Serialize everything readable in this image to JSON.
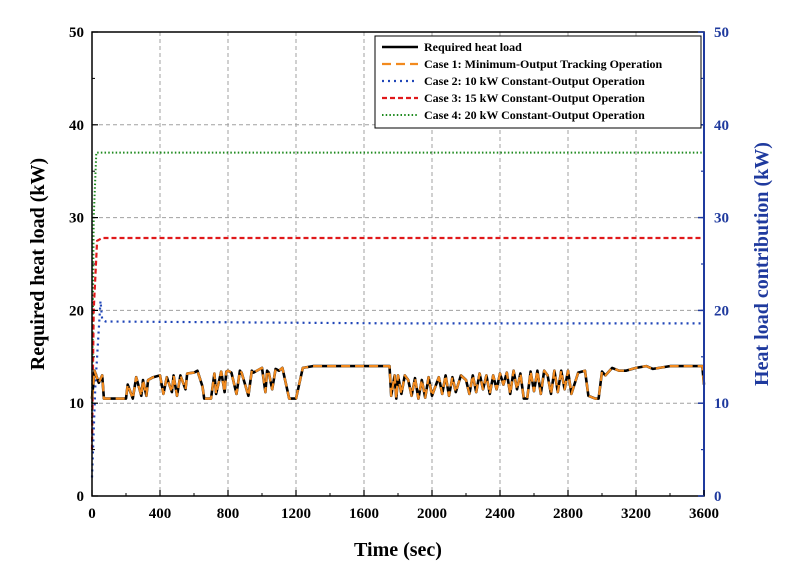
{
  "chart_data": {
    "type": "line",
    "title": "",
    "xlabel": "Time (sec)",
    "ylabel": "Required heat load (kW)",
    "y2label": "Heat load contribution (kW)",
    "xlim": [
      0,
      3600
    ],
    "ylim": [
      0,
      50
    ],
    "y2lim": [
      0,
      50
    ],
    "xticks": [
      0,
      400,
      800,
      1200,
      1600,
      2000,
      2400,
      2800,
      3200,
      3600
    ],
    "yticks": [
      0,
      10,
      20,
      30,
      40,
      50
    ],
    "y2ticks": [
      0,
      10,
      20,
      30,
      40,
      50
    ],
    "grid": true,
    "legend_position": "top-right",
    "colors": {
      "required": "#000000",
      "case1": "#f28a1e",
      "case2": "#2046b8",
      "case3": "#e0191b",
      "case4": "#1e8a1e",
      "right_axis": "#1f3a9e"
    },
    "series": [
      {
        "name": "Required heat load",
        "axis": "left",
        "x": [
          0,
          15,
          40,
          60,
          70,
          100,
          200,
          210,
          240,
          260,
          290,
          300,
          320,
          330,
          360,
          400,
          420,
          440,
          470,
          480,
          500,
          520,
          550,
          560,
          600,
          620,
          650,
          660,
          700,
          720,
          730,
          760,
          780,
          790,
          800,
          820,
          850,
          870,
          880,
          920,
          940,
          950,
          1000,
          1020,
          1030,
          1040,
          1060,
          1080,
          1100,
          1120,
          1160,
          1170,
          1200,
          1240,
          1300,
          1400,
          1500,
          1600,
          1700,
          1750,
          1760,
          1780,
          1790,
          1800,
          1820,
          1840,
          1860,
          1880,
          1900,
          1920,
          1940,
          1960,
          1980,
          2000,
          2040,
          2060,
          2080,
          2100,
          2120,
          2140,
          2170,
          2200,
          2220,
          2240,
          2260,
          2280,
          2300,
          2320,
          2340,
          2360,
          2380,
          2400,
          2420,
          2440,
          2460,
          2480,
          2500,
          2520,
          2540,
          2560,
          2580,
          2600,
          2620,
          2640,
          2660,
          2680,
          2700,
          2720,
          2740,
          2760,
          2780,
          2800,
          2820,
          2860,
          2900,
          2920,
          2960,
          2980,
          3000,
          3020,
          3060,
          3100,
          3140,
          3200,
          3260,
          3300,
          3400,
          3500,
          3560,
          3580,
          3590,
          3600
        ],
        "y": [
          10.5,
          13.5,
          12.2,
          13,
          10.5,
          10.5,
          10.5,
          12,
          10.5,
          12.8,
          10.8,
          12.5,
          10.8,
          12.5,
          12.8,
          13,
          11,
          12.8,
          11.2,
          13,
          10.8,
          13,
          11.5,
          13.2,
          13.3,
          13.5,
          11.8,
          10.5,
          10.5,
          13.2,
          11,
          13.4,
          11.2,
          13.4,
          13.5,
          13.3,
          11,
          13.5,
          13.3,
          10.8,
          13.5,
          13.3,
          13.8,
          11.2,
          13.5,
          13.3,
          11.5,
          13.7,
          13.5,
          13.8,
          10.5,
          10.5,
          10.5,
          13.8,
          14,
          14,
          14,
          14,
          14,
          14,
          10.8,
          13,
          10.5,
          13,
          11,
          13,
          12.5,
          10.8,
          12.7,
          10.5,
          12.5,
          10.6,
          12.8,
          10.8,
          12.8,
          11,
          13,
          10.8,
          12.8,
          11.2,
          13,
          12.5,
          11,
          13,
          11.2,
          13.2,
          11.5,
          13,
          11,
          13,
          11.5,
          13.2,
          12,
          13.3,
          11,
          13.5,
          11.5,
          13.2,
          10.5,
          10.5,
          13.4,
          11.3,
          13.5,
          11,
          13.5,
          13,
          11,
          13.5,
          11.2,
          13.5,
          11.5,
          13.5,
          11,
          13.3,
          13.5,
          10.8,
          10.5,
          10.5,
          13.4,
          13,
          13.8,
          13.5,
          13.5,
          13.8,
          14,
          13.7,
          14,
          14,
          14,
          14,
          14,
          12
        ]
      },
      {
        "name": "Case 1: Minimum-Output Tracking Operation",
        "axis": "right",
        "x": [
          0,
          15,
          40,
          60,
          70,
          100,
          200,
          210,
          240,
          260,
          290,
          300,
          320,
          330,
          360,
          400,
          420,
          440,
          470,
          480,
          500,
          520,
          550,
          560,
          600,
          620,
          650,
          660,
          700,
          720,
          730,
          760,
          780,
          790,
          800,
          820,
          850,
          870,
          880,
          920,
          940,
          950,
          1000,
          1020,
          1030,
          1040,
          1060,
          1080,
          1100,
          1120,
          1160,
          1170,
          1200,
          1240,
          1300,
          1400,
          1500,
          1600,
          1700,
          1750,
          1760,
          1780,
          1790,
          1800,
          1820,
          1840,
          1860,
          1880,
          1900,
          1920,
          1940,
          1960,
          1980,
          2000,
          2040,
          2060,
          2080,
          2100,
          2120,
          2140,
          2170,
          2200,
          2220,
          2240,
          2260,
          2280,
          2300,
          2320,
          2340,
          2360,
          2380,
          2400,
          2420,
          2440,
          2460,
          2480,
          2500,
          2520,
          2540,
          2560,
          2580,
          2600,
          2620,
          2640,
          2660,
          2680,
          2700,
          2720,
          2740,
          2760,
          2780,
          2800,
          2820,
          2860,
          2900,
          2920,
          2960,
          2980,
          3000,
          3020,
          3060,
          3100,
          3140,
          3200,
          3260,
          3300,
          3400,
          3500,
          3560,
          3580,
          3590,
          3600
        ],
        "y": [
          10.5,
          13.5,
          12.2,
          13,
          10.5,
          10.5,
          10.5,
          12,
          10.5,
          12.8,
          10.8,
          12.5,
          10.8,
          12.5,
          12.8,
          13,
          11,
          12.8,
          11.2,
          13,
          10.8,
          13,
          11.5,
          13.2,
          13.3,
          13.5,
          11.8,
          10.5,
          10.5,
          13.2,
          11,
          13.4,
          11.2,
          13.4,
          13.5,
          13.3,
          11,
          13.5,
          13.3,
          10.8,
          13.5,
          13.3,
          13.8,
          11.2,
          13.5,
          13.3,
          11.5,
          13.7,
          13.5,
          13.8,
          10.5,
          10.5,
          10.5,
          13.8,
          14,
          14,
          14,
          14,
          14,
          14,
          10.8,
          13,
          10.5,
          13,
          11,
          13,
          12.5,
          10.8,
          12.7,
          10.5,
          12.5,
          10.6,
          12.8,
          10.8,
          12.8,
          11,
          13,
          10.8,
          12.8,
          11.2,
          13,
          12.5,
          11,
          13,
          11.2,
          13.2,
          11.5,
          13,
          11,
          13,
          11.5,
          13.2,
          12,
          13.3,
          11,
          13.5,
          11.5,
          13.2,
          10.5,
          10.5,
          13.4,
          11.3,
          13.5,
          11,
          13.5,
          13,
          11,
          13.5,
          11.2,
          13.5,
          11.5,
          13.5,
          11,
          13.3,
          13.5,
          10.8,
          10.5,
          10.5,
          13.4,
          13,
          13.8,
          13.5,
          13.5,
          13.8,
          14,
          13.7,
          14,
          14,
          14,
          14,
          14,
          12
        ]
      },
      {
        "name": "Case 2: 10 kW Constant-Output Operation",
        "axis": "right",
        "x": [
          0,
          20,
          50,
          60,
          80,
          1800,
          3600
        ],
        "y": [
          2,
          12,
          21,
          19,
          18.8,
          18.6,
          18.6
        ]
      },
      {
        "name": "Case 3: 15 kW Constant-Output Operation",
        "axis": "right",
        "x": [
          0,
          10,
          30,
          60,
          3600
        ],
        "y": [
          5,
          20,
          27.5,
          27.8,
          27.8
        ]
      },
      {
        "name": "Case 4: 20 kW Constant-Output Operation",
        "axis": "right",
        "x": [
          0,
          10,
          25,
          60,
          3600
        ],
        "y": [
          8,
          30,
          37,
          37,
          37
        ]
      }
    ]
  }
}
